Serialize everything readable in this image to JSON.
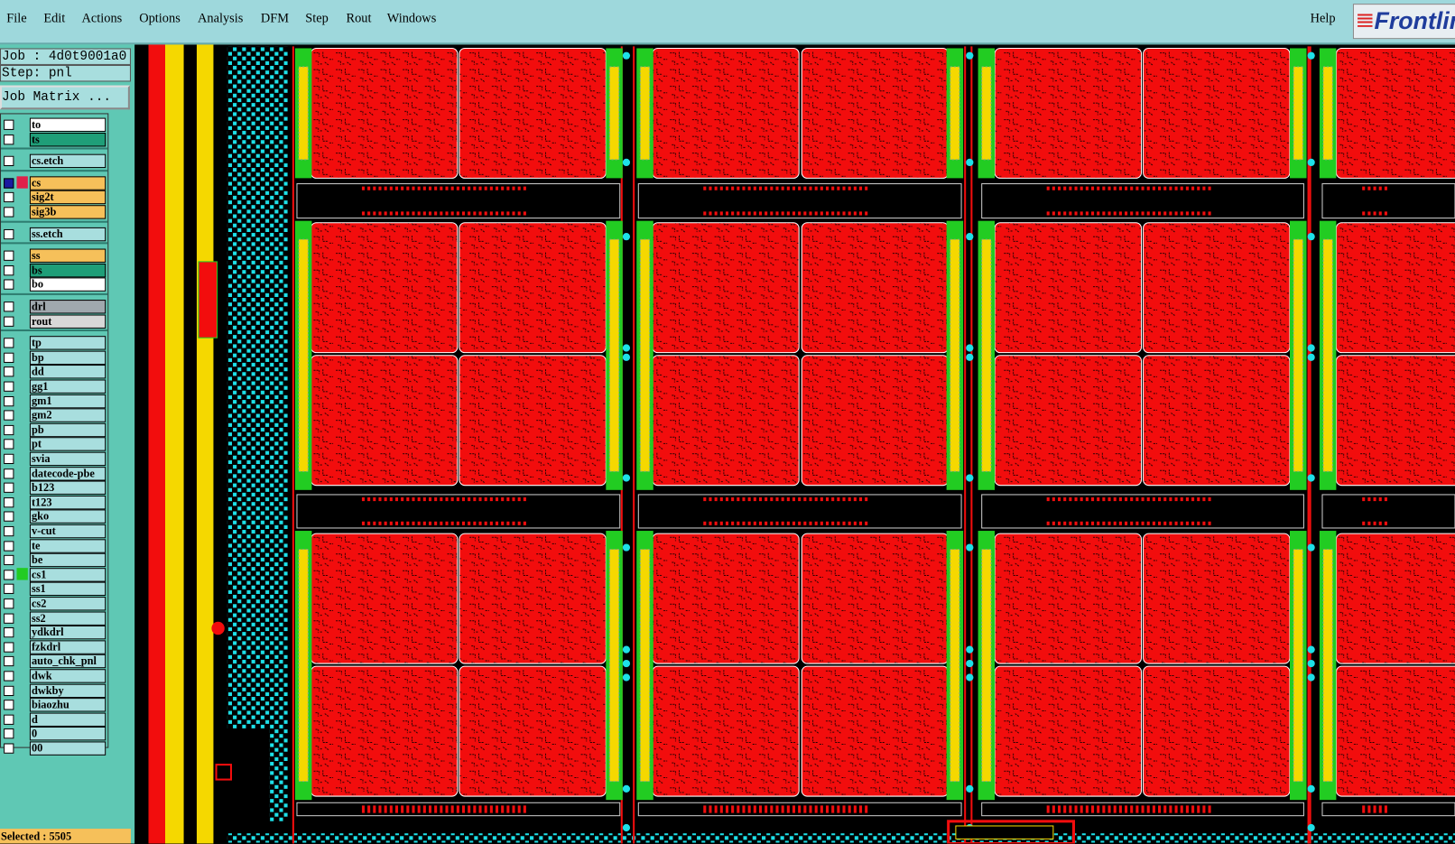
{
  "menu": [
    "File",
    "Edit",
    "Actions",
    "Options",
    "Analysis",
    "DFM",
    "Step",
    "Rout",
    "Windows"
  ],
  "help": "Help",
  "logo": "Frontline",
  "job": "Job : 4d0t9001a0",
  "step": "Step: pnl",
  "job_matrix_button": "Job Matrix ...",
  "layer_groups": [
    [
      {
        "name": "to",
        "color": "#ffffff"
      },
      {
        "name": "ts",
        "color": "#1f9e78"
      }
    ],
    [
      {
        "name": "cs.etch",
        "color": "#a8dede"
      }
    ],
    [
      {
        "name": "cs",
        "color": "#f6c05a"
      },
      {
        "name": "sig2t",
        "color": "#f6c05a"
      },
      {
        "name": "sig3b",
        "color": "#f6c05a"
      }
    ],
    [
      {
        "name": "ss.etch",
        "color": "#a8dede"
      }
    ],
    [
      {
        "name": "ss",
        "color": "#f6c05a"
      },
      {
        "name": "bs",
        "color": "#1f9e78"
      },
      {
        "name": "bo",
        "color": "#ffffff"
      }
    ],
    [
      {
        "name": "drl",
        "color": "#a0a8ae"
      },
      {
        "name": "rout",
        "color": "#d8d8d8"
      }
    ],
    [
      {
        "name": "tp",
        "color": "#a8dede"
      },
      {
        "name": "bp",
        "color": "#a8dede"
      },
      {
        "name": "dd",
        "color": "#a8dede"
      },
      {
        "name": "gg1",
        "color": "#a8dede"
      },
      {
        "name": "gm1",
        "color": "#a8dede"
      },
      {
        "name": "gm2",
        "color": "#a8dede"
      },
      {
        "name": "pb",
        "color": "#a8dede"
      },
      {
        "name": "pt",
        "color": "#a8dede"
      },
      {
        "name": "svia",
        "color": "#a8dede"
      },
      {
        "name": "datecode-pbe",
        "color": "#a8dede"
      },
      {
        "name": "b123",
        "color": "#a8dede"
      },
      {
        "name": "t123",
        "color": "#a8dede"
      },
      {
        "name": "gko",
        "color": "#a8dede"
      },
      {
        "name": "v-cut",
        "color": "#a8dede"
      },
      {
        "name": "te",
        "color": "#a8dede"
      },
      {
        "name": "be",
        "color": "#a8dede"
      },
      {
        "name": "cs1",
        "color": "#a8dede"
      },
      {
        "name": "ss1",
        "color": "#a8dede"
      },
      {
        "name": "cs2",
        "color": "#a8dede"
      },
      {
        "name": "ss2",
        "color": "#a8dede"
      },
      {
        "name": "ydkdrl",
        "color": "#a8dede"
      },
      {
        "name": "fzkdrl",
        "color": "#a8dede"
      },
      {
        "name": "auto_chk_pnl",
        "color": "#a8dede"
      },
      {
        "name": "dwk",
        "color": "#a8dede"
      },
      {
        "name": "dwkby",
        "color": "#a8dede"
      },
      {
        "name": "biaozhu",
        "color": "#a8dede"
      },
      {
        "name": "d",
        "color": "#a8dede"
      },
      {
        "name": "0",
        "color": "#a8dede"
      },
      {
        "name": "00",
        "color": "#a8dede"
      }
    ]
  ],
  "selected": "Selected : 5505"
}
